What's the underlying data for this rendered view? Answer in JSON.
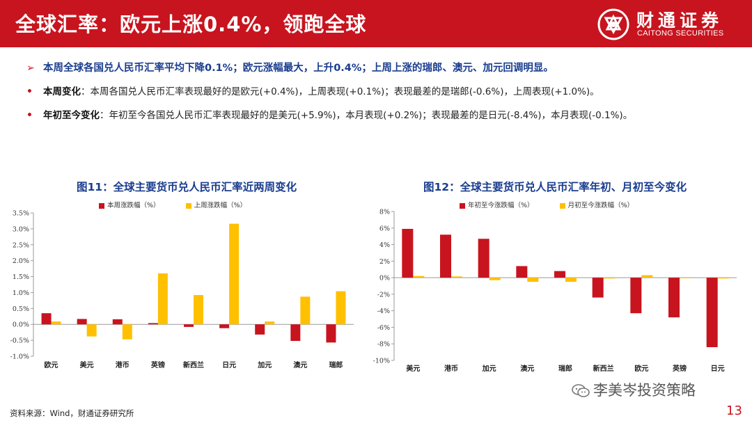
{
  "header": {
    "title": "全球汇率：欧元上涨0.4%，领跑全球",
    "logo_cn": "财通证券",
    "logo_en": "CAITONG SECURITIES",
    "logo_icon": "caitong-logo-icon",
    "color": "#c8141e"
  },
  "bullets": {
    "lead_marker": "➢",
    "lead": "本周全球各国兑人民币汇率平均下降0.1%；欧元涨幅最大，上升0.4%；上周上涨的瑞郎、澳元、加元回调明显。",
    "items": [
      {
        "marker": "•",
        "label": "本周变化",
        "text": "：本周各国兑人民币汇率表现最好的是欧元(+0.4%)，上周表现(+0.1%)；表现最差的是瑞郎(-0.6%)，上周表现(+1.0%)。"
      },
      {
        "marker": "•",
        "label": "年初至今变化",
        "text": "：年初至今各国兑人民币汇率表现最好的是美元(+5.9%)，本月表现(+0.2%)；表现最差的是日元(-8.4%)，本月表现(-0.1%)。"
      }
    ]
  },
  "charts": {
    "left_title": "图11：全球主要货币兑人民币汇率近两周变化",
    "right_title": "图12：全球主要货币兑人民币汇率年初、月初至今变化"
  },
  "chart_data": [
    {
      "type": "bar",
      "title": "图11：全球主要货币兑人民币汇率近两周变化",
      "categories": [
        "欧元",
        "美元",
        "港币",
        "英镑",
        "新西兰",
        "日元",
        "加元",
        "澳元",
        "瑞郎"
      ],
      "series": [
        {
          "name": "本周涨跌幅（%）",
          "color": "#c8141e",
          "values": [
            0.35,
            0.17,
            0.16,
            0.04,
            -0.08,
            -0.12,
            -0.32,
            -0.52,
            -0.57
          ]
        },
        {
          "name": "上周涨跌幅（%）",
          "color": "#ffc000",
          "values": [
            0.09,
            -0.38,
            -0.47,
            1.6,
            0.92,
            3.16,
            0.09,
            0.87,
            1.04
          ]
        }
      ],
      "ylim": [
        -1.0,
        3.5
      ],
      "yticks": [
        -1.0,
        -0.5,
        0.0,
        0.5,
        1.0,
        1.5,
        2.0,
        2.5,
        3.0,
        3.5
      ],
      "ytick_labels": [
        "-1.0%",
        "-0.5%",
        "0.0%",
        "0.5%",
        "1.0%",
        "1.5%",
        "2.0%",
        "2.5%",
        "3.0%",
        "3.5%"
      ],
      "legend": "top"
    },
    {
      "type": "bar",
      "title": "图12：全球主要货币兑人民币汇率年初、月初至今变化",
      "categories": [
        "美元",
        "港币",
        "加元",
        "澳元",
        "瑞郎",
        "新西兰",
        "欧元",
        "英镑",
        "日元"
      ],
      "series": [
        {
          "name": "年初至今涨跌幅（%）",
          "color": "#c8141e",
          "values": [
            5.9,
            5.2,
            4.7,
            1.4,
            0.8,
            -2.4,
            -4.3,
            -4.8,
            -8.4
          ]
        },
        {
          "name": "月初至今涨跌幅（%）",
          "color": "#ffc000",
          "values": [
            0.2,
            0.15,
            -0.3,
            -0.5,
            -0.5,
            -0.1,
            0.3,
            -0.05,
            -0.1
          ]
        }
      ],
      "ylim": [
        -10,
        8
      ],
      "yticks": [
        -10,
        -8,
        -6,
        -4,
        -2,
        0,
        2,
        4,
        6,
        8
      ],
      "ytick_labels": [
        "-10%",
        "-8%",
        "-6%",
        "-4%",
        "-2%",
        "0%",
        "2%",
        "4%",
        "6%",
        "8%"
      ],
      "legend": "top"
    }
  ],
  "footer": {
    "source": "资料来源：Wind，财通证券研究所",
    "watermark": "李美岑投资策略",
    "watermark_icon": "wechat-icon",
    "page": "13"
  }
}
